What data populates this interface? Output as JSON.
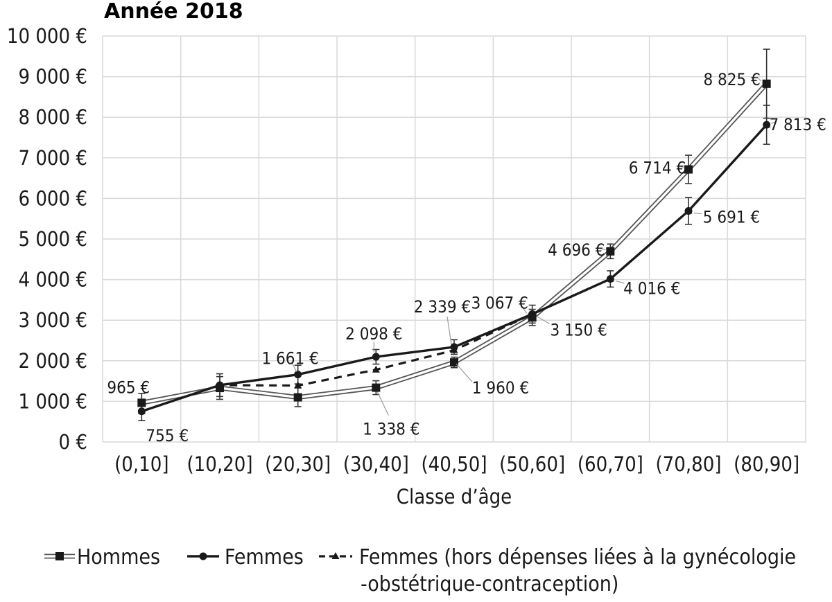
{
  "chart_data": {
    "type": "line",
    "title": "Année 2018",
    "xlabel": "Classe d’âge",
    "ylabel": "",
    "ylim": [
      0,
      10000
    ],
    "y_ticks": [
      "0 €",
      "1 000 €",
      "2 000 €",
      "3 000 €",
      "4 000 €",
      "5 000 €",
      "6 000 €",
      "7 000 €",
      "8 000 €",
      "9 000 €",
      "10 000 €"
    ],
    "categories": [
      "(0,10]",
      "(10,20]",
      "(20,30]",
      "(30,40]",
      "(40,50]",
      "(50,60]",
      "(60,70]",
      "(70,80]",
      "(80,90]"
    ],
    "grid": true,
    "legend_position": "bottom",
    "series": [
      {
        "name": "Hommes",
        "style": "double-line-square",
        "values": [
          965,
          1330,
          1100,
          1338,
          1960,
          3067,
          4696,
          6714,
          8825
        ],
        "error": [
          230,
          280,
          230,
          170,
          130,
          200,
          180,
          350,
          850
        ]
      },
      {
        "name": "Femmes",
        "style": "solid-circle",
        "values": [
          755,
          1400,
          1661,
          2098,
          2339,
          3150,
          4016,
          5691,
          7813
        ],
        "error": [
          230,
          280,
          230,
          180,
          180,
          220,
          200,
          330,
          480
        ]
      },
      {
        "name": "Femmes (hors dépenses liées à la gynécologie -obstétrique-contraception)",
        "name_lines": [
          "Femmes (hors dépenses liées à la gynécologie",
          "-obstétrique-contraception)"
        ],
        "style": "dashed-triangle",
        "values": [
          755,
          1400,
          1390,
          1780,
          2260,
          3150,
          4016,
          5691,
          7813
        ]
      }
    ],
    "data_labels": [
      {
        "text": "965 €",
        "series": 0,
        "index": 0
      },
      {
        "text": "755 €",
        "series": 1,
        "index": 0
      },
      {
        "text": "1 661 €",
        "series": 1,
        "index": 2
      },
      {
        "text": "2 098 €",
        "series": 1,
        "index": 3
      },
      {
        "text": "1 338 €",
        "series": 0,
        "index": 3
      },
      {
        "text": "2 339 €",
        "series": 1,
        "index": 4
      },
      {
        "text": "1 960 €",
        "series": 0,
        "index": 4
      },
      {
        "text": "3 067 €",
        "series": 0,
        "index": 5
      },
      {
        "text": "3 150 €",
        "series": 1,
        "index": 5
      },
      {
        "text": "4 696 €",
        "series": 0,
        "index": 6
      },
      {
        "text": "4 016 €",
        "series": 1,
        "index": 6
      },
      {
        "text": "6 714 €",
        "series": 0,
        "index": 7
      },
      {
        "text": "5 691 €",
        "series": 1,
        "index": 7
      },
      {
        "text": "8 825 €",
        "series": 0,
        "index": 8
      },
      {
        "text": "7 813 €",
        "series": 1,
        "index": 8
      }
    ],
    "colors": {
      "line": "#1a1a1a",
      "grid": "#d9d9d9",
      "hommes_core": "#ffffff"
    }
  }
}
